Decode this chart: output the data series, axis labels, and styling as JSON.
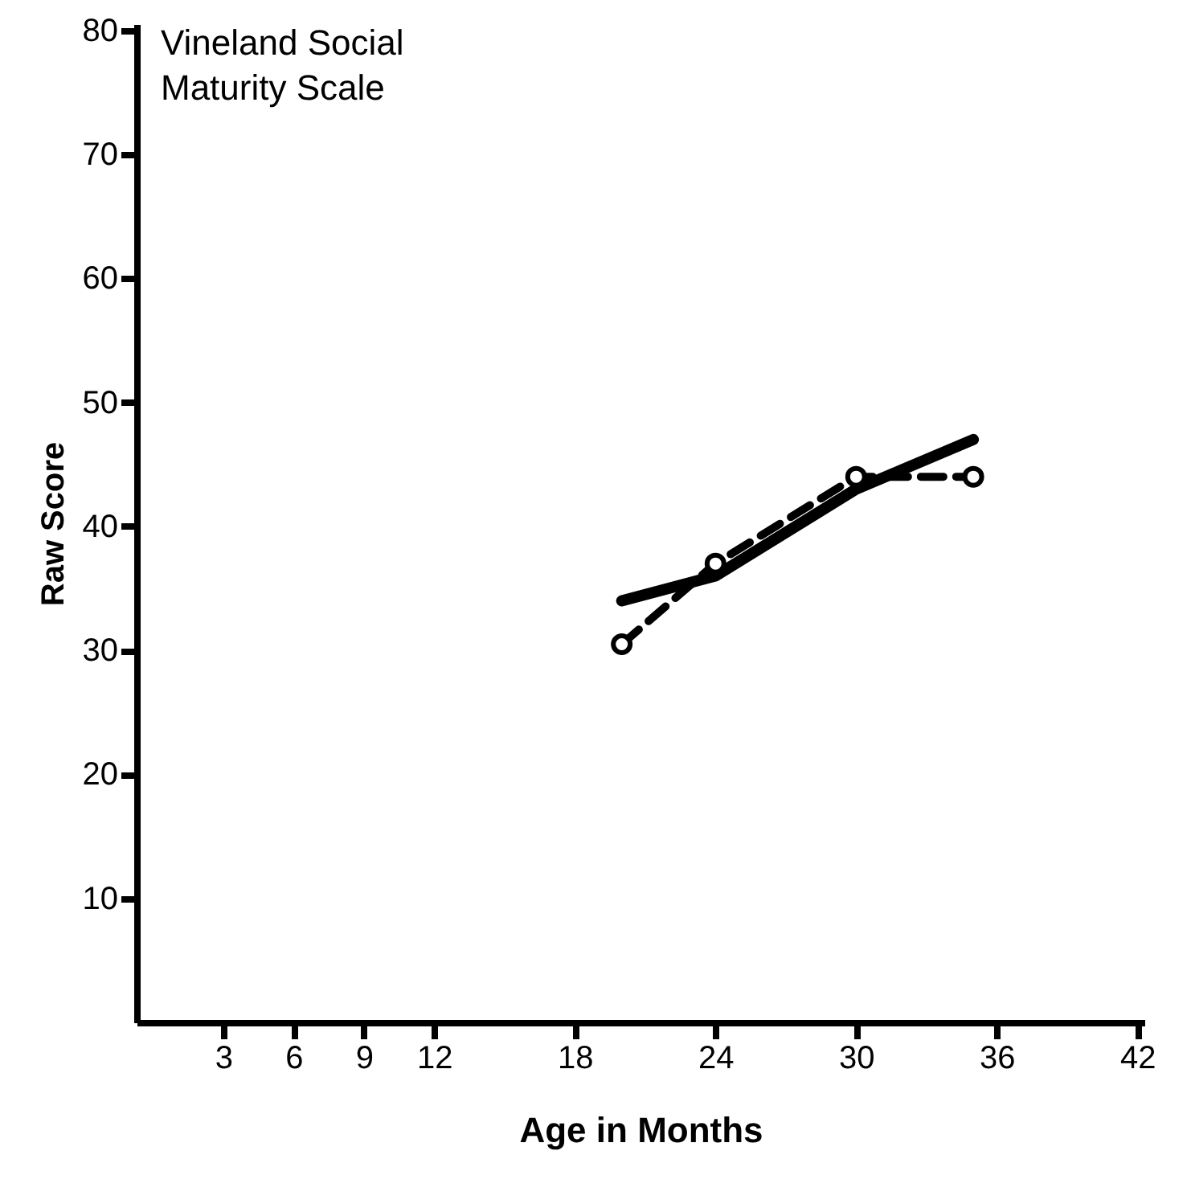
{
  "chart_data": {
    "type": "line",
    "title": "Vineland  Social\nMaturity Scale",
    "xlabel": "Age in Months",
    "ylabel": "Raw Score",
    "xlim": [
      -0.7,
      42.3
    ],
    "ylim": [
      0,
      80.5
    ],
    "xticks": [
      3,
      6,
      9,
      12,
      18,
      24,
      30,
      36,
      42
    ],
    "yticks": [
      10,
      20,
      30,
      40,
      50,
      60,
      70,
      80
    ],
    "series": [
      {
        "color": "#000000",
        "line_style": "solid",
        "marker": "none",
        "x": [
          20,
          24,
          30,
          35
        ],
        "values": [
          34,
          36,
          43,
          47
        ]
      },
      {
        "color": "#000000",
        "line_style": "dashed",
        "marker": "circle",
        "x": [
          20,
          24,
          30,
          35
        ],
        "values": [
          30.5,
          37,
          44,
          44
        ]
      }
    ],
    "grid": false
  }
}
